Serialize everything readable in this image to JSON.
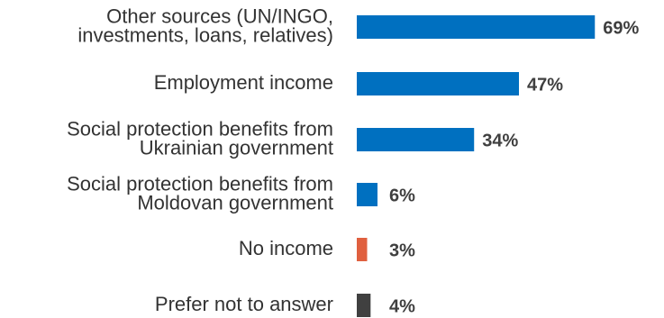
{
  "chart_data": {
    "type": "bar",
    "orientation": "horizontal",
    "categories": [
      [
        "Other sources (UN/INGO,",
        "investments, loans, relatives)"
      ],
      [
        "Employment income"
      ],
      [
        "Social protection benefits from",
        "Ukrainian government"
      ],
      [
        "Social protection benefits from",
        "Moldovan government"
      ],
      [
        "No income"
      ],
      [
        "Prefer not to answer"
      ]
    ],
    "values": [
      69,
      47,
      34,
      6,
      3,
      4
    ],
    "value_labels": [
      "69%",
      "47%",
      "34%",
      "6%",
      "3%",
      "4%"
    ],
    "colors": [
      "#0070c0",
      "#0070c0",
      "#0070c0",
      "#0070c0",
      "#e0603f",
      "#404040"
    ]
  }
}
